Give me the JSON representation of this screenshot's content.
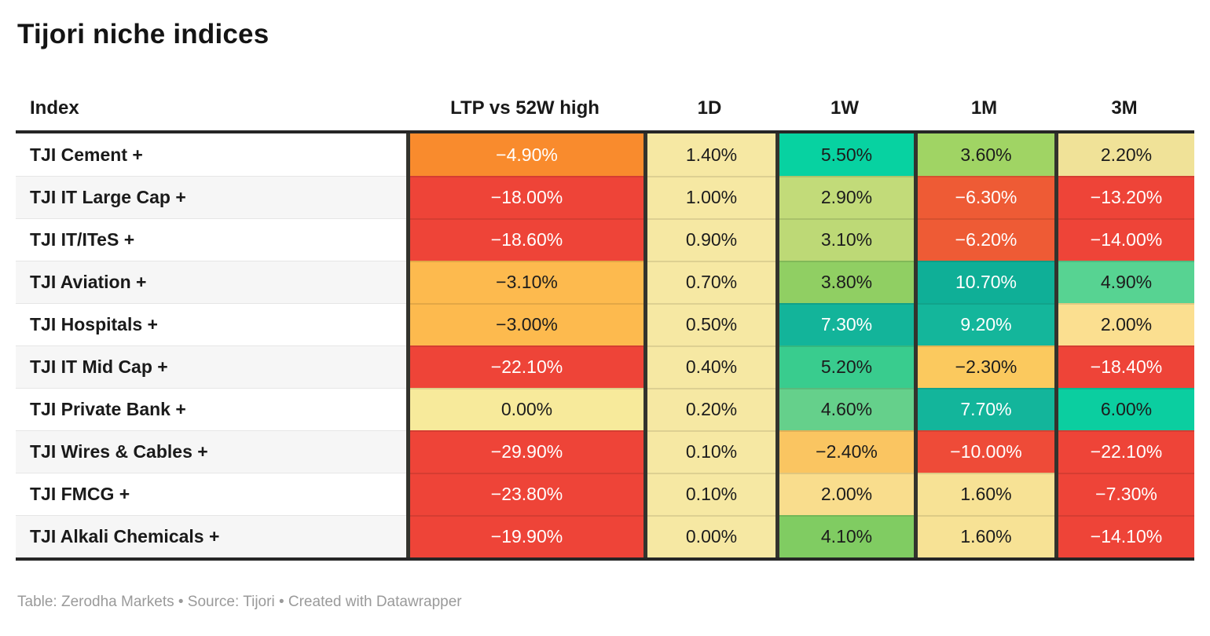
{
  "title": "Tijori niche indices",
  "footer": {
    "text": "Table: Zerodha Markets • Source: Tijori • Created with Datawrapper"
  },
  "colors": {
    "strong_negative": "#EE4438",
    "negative": "#EE5B35",
    "mild_negative_orange": "#F98B2D",
    "mild_negative_amber": "#FDBA4E",
    "neutral_yellow": "#F6E8A3",
    "positive_teal": "#13B59B",
    "positive_emerald": "#07D2A1",
    "header_border": "#262626",
    "column_separator": "#33332d"
  },
  "chart_data": {
    "type": "table",
    "title": "Tijori niche indices",
    "columns": [
      "Index",
      "LTP vs 52W high",
      "1D",
      "1W",
      "1M",
      "3M"
    ],
    "rows": [
      {
        "index": "TJI Cement +",
        "values": [
          "−4.90%",
          "1.40%",
          "5.50%",
          "3.60%",
          "2.20%"
        ],
        "bg": [
          "#F98B2D",
          "#F6E8A3",
          "#07D2A1",
          "#A0D464",
          "#F0E298"
        ],
        "fg": [
          "#FFFFFF",
          "#1c1c1c",
          "#1c1c1c",
          "#1c1c1c",
          "#1c1c1c"
        ]
      },
      {
        "index": "TJI IT Large Cap +",
        "values": [
          "−18.00%",
          "1.00%",
          "2.90%",
          "−6.30%",
          "−13.20%"
        ],
        "bg": [
          "#EE4438",
          "#F6E8A3",
          "#C2DB79",
          "#EE5B35",
          "#EE4438"
        ],
        "fg": [
          "#FFFFFF",
          "#1c1c1c",
          "#1c1c1c",
          "#FFFFFF",
          "#FFFFFF"
        ]
      },
      {
        "index": "TJI IT/ITeS +",
        "values": [
          "−18.60%",
          "0.90%",
          "3.10%",
          "−6.20%",
          "−14.00%"
        ],
        "bg": [
          "#EE4438",
          "#F6E8A3",
          "#BDD976",
          "#EE5B35",
          "#EE4438"
        ],
        "fg": [
          "#FFFFFF",
          "#1c1c1c",
          "#1c1c1c",
          "#FFFFFF",
          "#FFFFFF"
        ]
      },
      {
        "index": "TJI Aviation +",
        "values": [
          "−3.10%",
          "0.70%",
          "3.80%",
          "10.70%",
          "4.90%"
        ],
        "bg": [
          "#FDBA4E",
          "#F6E8A3",
          "#90CF63",
          "#0FAF97",
          "#57D392"
        ],
        "fg": [
          "#1c1c1c",
          "#1c1c1c",
          "#1c1c1c",
          "#FFFFFF",
          "#1c1c1c"
        ]
      },
      {
        "index": "TJI Hospitals +",
        "values": [
          "−3.00%",
          "0.50%",
          "7.30%",
          "9.20%",
          "2.00%"
        ],
        "bg": [
          "#FDBA4E",
          "#F6E8A3",
          "#13B49A",
          "#14B69B",
          "#FBDF90"
        ],
        "fg": [
          "#1c1c1c",
          "#1c1c1c",
          "#FFFFFF",
          "#FFFFFF",
          "#1c1c1c"
        ]
      },
      {
        "index": "TJI IT Mid Cap +",
        "values": [
          "−22.10%",
          "0.40%",
          "5.20%",
          "−2.30%",
          "−18.40%"
        ],
        "bg": [
          "#EE4438",
          "#F6E8A3",
          "#39CC8E",
          "#FBC95E",
          "#EE4438"
        ],
        "fg": [
          "#FFFFFF",
          "#1c1c1c",
          "#1c1c1c",
          "#1c1c1c",
          "#FFFFFF"
        ]
      },
      {
        "index": "TJI Private Bank +",
        "values": [
          "0.00%",
          "0.20%",
          "4.60%",
          "7.70%",
          "6.00%"
        ],
        "bg": [
          "#F7EA9B",
          "#F6E8A3",
          "#65D08B",
          "#13B59B",
          "#0BCEA0"
        ],
        "fg": [
          "#1c1c1c",
          "#1c1c1c",
          "#1c1c1c",
          "#FFFFFF",
          "#1c1c1c"
        ]
      },
      {
        "index": "TJI Wires & Cables +",
        "values": [
          "−29.90%",
          "0.10%",
          "−2.40%",
          "−10.00%",
          "−22.10%"
        ],
        "bg": [
          "#EE4438",
          "#F6E8A3",
          "#FAC561",
          "#EE4B38",
          "#EE4438"
        ],
        "fg": [
          "#FFFFFF",
          "#1c1c1c",
          "#1c1c1c",
          "#FFFFFF",
          "#FFFFFF"
        ]
      },
      {
        "index": "TJI FMCG +",
        "values": [
          "−23.80%",
          "0.10%",
          "2.00%",
          "1.60%",
          "−7.30%"
        ],
        "bg": [
          "#EE4438",
          "#F6E8A3",
          "#F9DD8D",
          "#F7E295",
          "#EE4438"
        ],
        "fg": [
          "#FFFFFF",
          "#1c1c1c",
          "#1c1c1c",
          "#1c1c1c",
          "#FFFFFF"
        ]
      },
      {
        "index": "TJI Alkali Chemicals +",
        "values": [
          "−19.90%",
          "0.00%",
          "4.10%",
          "1.60%",
          "−14.10%"
        ],
        "bg": [
          "#EE4438",
          "#F6E8A3",
          "#80CC62",
          "#F7E295",
          "#EE4438"
        ],
        "fg": [
          "#FFFFFF",
          "#1c1c1c",
          "#1c1c1c",
          "#1c1c1c",
          "#FFFFFF"
        ]
      }
    ]
  }
}
